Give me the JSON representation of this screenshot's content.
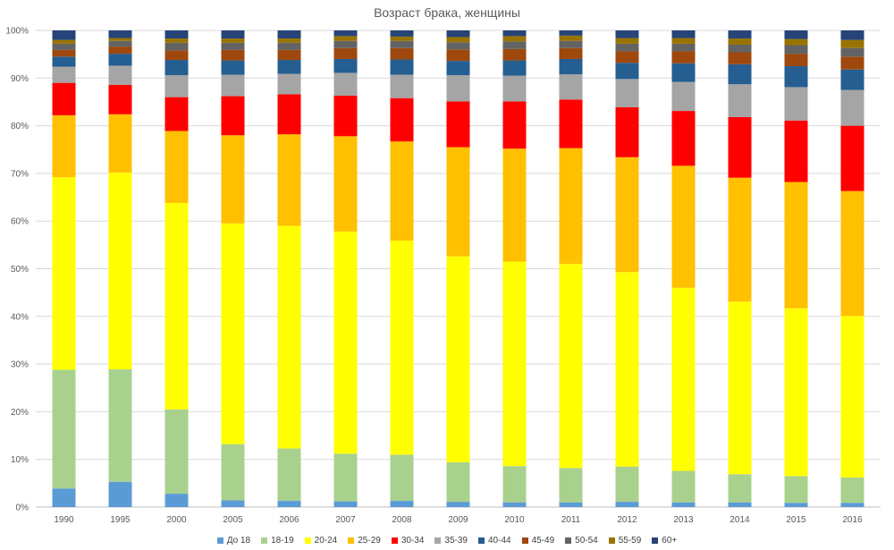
{
  "chart_data": {
    "type": "bar",
    "stacked": "percent",
    "title": "Возраст брака, женщины",
    "xlabel": "",
    "ylabel": "",
    "ylim": [
      0,
      1
    ],
    "y_ticks": [
      "0%",
      "10%",
      "20%",
      "30%",
      "40%",
      "50%",
      "60%",
      "70%",
      "80%",
      "90%",
      "100%"
    ],
    "grid": true,
    "legend_position": "bottom",
    "categories": [
      "1990",
      "1995",
      "2000",
      "2005",
      "2006",
      "2007",
      "2008",
      "2009",
      "2010",
      "2011",
      "2012",
      "2013",
      "2014",
      "2015",
      "2016"
    ],
    "series": [
      {
        "name": "До 18",
        "color": "#5b9bd5",
        "values": [
          3.9,
          5.3,
          2.8,
          1.4,
          1.3,
          1.2,
          1.3,
          1.1,
          1.0,
          1.0,
          1.1,
          1.0,
          1.0,
          0.9,
          0.9
        ]
      },
      {
        "name": "18-19",
        "color": "#a9d18e",
        "values": [
          24.9,
          23.6,
          17.7,
          11.8,
          11.0,
          10.0,
          9.7,
          8.3,
          7.6,
          7.2,
          7.4,
          6.6,
          5.9,
          5.6,
          5.3
        ]
      },
      {
        "name": "20-24",
        "color": "#ffff00",
        "values": [
          40.4,
          41.3,
          43.3,
          46.3,
          46.7,
          46.6,
          44.9,
          43.2,
          42.9,
          42.8,
          40.8,
          38.4,
          36.2,
          35.2,
          33.9
        ]
      },
      {
        "name": "25-29",
        "color": "#ffc000",
        "values": [
          13.0,
          12.2,
          15.1,
          18.5,
          19.2,
          20.0,
          20.8,
          22.9,
          23.7,
          24.3,
          24.1,
          25.6,
          26.0,
          26.5,
          26.2
        ]
      },
      {
        "name": "30-34",
        "color": "#ff0000",
        "values": [
          6.8,
          6.2,
          7.1,
          8.2,
          8.4,
          8.5,
          9.1,
          9.6,
          9.9,
          10.2,
          10.5,
          11.5,
          12.7,
          12.9,
          13.7
        ]
      },
      {
        "name": "35-39",
        "color": "#a5a5a5",
        "values": [
          3.4,
          4.0,
          4.6,
          4.5,
          4.3,
          4.8,
          4.9,
          5.5,
          5.4,
          5.3,
          5.9,
          6.1,
          6.9,
          7.0,
          7.5
        ]
      },
      {
        "name": "40-44",
        "color": "#255e91",
        "values": [
          2.1,
          2.5,
          3.2,
          3.0,
          2.9,
          2.9,
          3.2,
          3.0,
          3.2,
          3.2,
          3.4,
          3.9,
          4.2,
          4.4,
          4.3
        ]
      },
      {
        "name": "45-49",
        "color": "#9e480e",
        "values": [
          1.4,
          1.5,
          2.0,
          2.2,
          2.1,
          2.3,
          2.4,
          2.4,
          2.4,
          2.3,
          2.4,
          2.5,
          2.5,
          2.6,
          2.7
        ]
      },
      {
        "name": "50-54",
        "color": "#636363",
        "values": [
          1.3,
          1.2,
          1.6,
          1.5,
          1.5,
          1.5,
          1.5,
          1.5,
          1.6,
          1.5,
          1.6,
          1.6,
          1.6,
          1.8,
          1.8
        ]
      },
      {
        "name": "55-59",
        "color": "#997300",
        "values": [
          0.8,
          0.6,
          0.9,
          0.9,
          0.9,
          1.0,
          0.9,
          1.1,
          1.1,
          1.1,
          1.2,
          1.2,
          1.3,
          1.3,
          1.7
        ]
      },
      {
        "name": "60+",
        "color": "#264478",
        "values": [
          2.0,
          1.6,
          1.7,
          1.7,
          1.7,
          1.2,
          1.3,
          1.4,
          1.2,
          1.1,
          1.6,
          1.6,
          1.7,
          1.8,
          2.0
        ]
      }
    ]
  }
}
